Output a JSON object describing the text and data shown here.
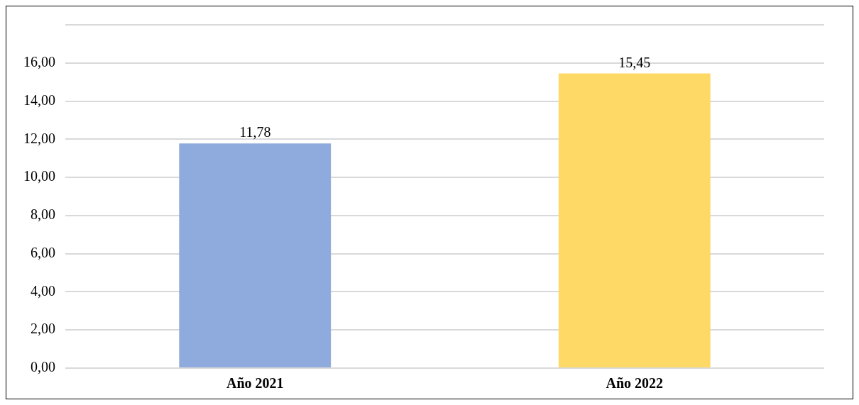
{
  "chart_data": {
    "type": "bar",
    "categories": [
      "Año 2021",
      "Año 2022"
    ],
    "values": [
      11.78,
      15.45
    ],
    "colors": [
      "#8faadc",
      "#ffd966"
    ],
    "value_labels": [
      "11,78",
      "15,45"
    ],
    "ylim": [
      0,
      18
    ],
    "yticks": [
      {
        "value": 0,
        "label": "0,00"
      },
      {
        "value": 2,
        "label": "2,00"
      },
      {
        "value": 4,
        "label": "4,00"
      },
      {
        "value": 6,
        "label": "6,00"
      },
      {
        "value": 8,
        "label": "8,00"
      },
      {
        "value": 10,
        "label": "10,00"
      },
      {
        "value": 12,
        "label": "12,00"
      },
      {
        "value": 14,
        "label": "14,00"
      },
      {
        "value": 16,
        "label": "16,00"
      },
      {
        "value": 18,
        "label": null
      }
    ],
    "grid": "y",
    "legend": false
  }
}
